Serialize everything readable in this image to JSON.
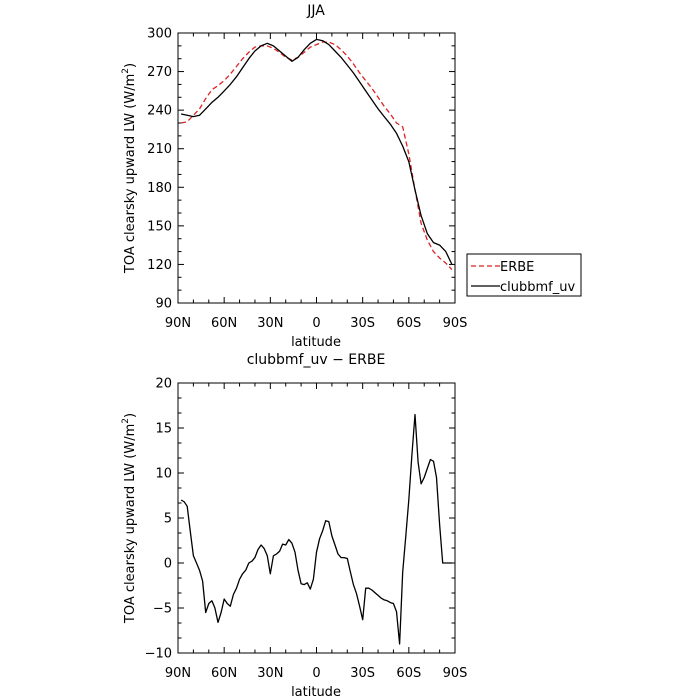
{
  "chart_data": [
    {
      "type": "line",
      "title": "JJA",
      "xlabel": "latitude",
      "ylabel": "TOA clearsky upward LW (W/m²)",
      "ylabel_main": "TOA clearsky upward LW (W/m",
      "ylabel_sup": "2",
      "ylabel_end": ")",
      "xlim": [
        90,
        -90
      ],
      "ylim": [
        90,
        300
      ],
      "x_ticks": [
        90,
        60,
        30,
        0,
        -30,
        -60,
        -90
      ],
      "x_tick_labels": [
        "90N",
        "60N",
        "30N",
        "0",
        "30S",
        "60S",
        "90S"
      ],
      "y_ticks": [
        90,
        120,
        150,
        180,
        210,
        240,
        270,
        300
      ],
      "y_tick_labels": [
        "90",
        "120",
        "150",
        "180",
        "210",
        "240",
        "270",
        "300"
      ],
      "legend": "right",
      "series": [
        {
          "name": "ERBE",
          "color": "#dd2222",
          "dash": true,
          "x": [
            88,
            84,
            80,
            76,
            72,
            68,
            64,
            60,
            56,
            52,
            48,
            44,
            40,
            36,
            32,
            28,
            24,
            20,
            16,
            12,
            8,
            4,
            0,
            -4,
            -8,
            -12,
            -16,
            -20,
            -24,
            -28,
            -32,
            -36,
            -40,
            -44,
            -48,
            -52,
            -56,
            -60,
            -64,
            -68,
            -72,
            -76,
            -80,
            -84,
            -88
          ],
          "y": [
            230,
            231,
            236,
            241,
            249,
            256,
            259,
            263,
            268,
            274,
            280,
            285,
            289,
            290,
            290,
            288,
            285,
            281,
            279,
            281,
            285,
            289,
            291,
            293,
            293,
            291,
            287,
            282,
            276,
            269,
            263,
            257,
            250,
            243,
            237,
            230,
            227,
            206,
            178,
            152,
            139,
            130,
            125,
            121,
            116
          ]
        },
        {
          "name": "clubbmf_uv",
          "color": "#000000",
          "dash": false,
          "x": [
            88,
            84,
            80,
            76,
            72,
            68,
            64,
            60,
            56,
            52,
            48,
            44,
            40,
            36,
            32,
            28,
            24,
            20,
            16,
            12,
            8,
            4,
            0,
            -4,
            -8,
            -12,
            -16,
            -20,
            -24,
            -28,
            -32,
            -36,
            -40,
            -44,
            -48,
            -52,
            -56,
            -60,
            -64,
            -68,
            -72,
            -76,
            -80,
            -84,
            -88
          ],
          "y": [
            237,
            236,
            235,
            236,
            241,
            246,
            250,
            255,
            260,
            266,
            273,
            280,
            286,
            290,
            292,
            290,
            286,
            282,
            278,
            281,
            287,
            292,
            295,
            294,
            291,
            286,
            281,
            275,
            269,
            262,
            255,
            248,
            241,
            235,
            229,
            222,
            212,
            200,
            178,
            158,
            144,
            137,
            135,
            130,
            120
          ]
        }
      ]
    },
    {
      "type": "line",
      "title": "clubbmf_uv − ERBE",
      "xlabel": "latitude",
      "ylabel": "TOA clearsky upward LW (W/m²)",
      "ylabel_main": "TOA clearsky upward LW (W/m",
      "ylabel_sup": "2",
      "ylabel_end": ")",
      "xlim": [
        90,
        -90
      ],
      "ylim": [
        -10,
        20
      ],
      "x_ticks": [
        90,
        60,
        30,
        0,
        -30,
        -60,
        -90
      ],
      "x_tick_labels": [
        "90N",
        "60N",
        "30N",
        "0",
        "30S",
        "60S",
        "90S"
      ],
      "y_ticks": [
        -10,
        -5,
        0,
        5,
        10,
        15,
        20
      ],
      "y_tick_labels": [
        "−10",
        "−5",
        "0",
        "5",
        "10",
        "15",
        "20"
      ],
      "series": [
        {
          "name": "",
          "color": "#000000",
          "dash": false,
          "x": [
            88,
            86,
            84,
            82,
            80,
            78,
            76,
            74,
            72,
            70,
            68,
            66,
            64,
            62,
            60,
            58,
            56,
            54,
            52,
            50,
            48,
            46,
            44,
            42,
            40,
            38,
            36,
            34,
            32,
            30,
            28,
            26,
            24,
            22,
            20,
            18,
            16,
            14,
            12,
            10,
            8,
            6,
            4,
            2,
            0,
            -2,
            -4,
            -6,
            -8,
            -10,
            -12,
            -14,
            -16,
            -18,
            -20,
            -22,
            -24,
            -26,
            -28,
            -30,
            -32,
            -34,
            -36,
            -38,
            -40,
            -42,
            -44,
            -46,
            -48,
            -50,
            -52,
            -54,
            -56,
            -58,
            -60,
            -62,
            -64,
            -66,
            -68,
            -70,
            -72,
            -74,
            -76,
            -78,
            -80,
            -82,
            -84,
            -86,
            -88
          ],
          "y": [
            7.0,
            6.8,
            6.3,
            3.5,
            0.8,
            0.0,
            -0.8,
            -2.0,
            -5.5,
            -4.5,
            -4.2,
            -5.0,
            -6.6,
            -5.5,
            -4.0,
            -4.5,
            -4.8,
            -3.5,
            -2.8,
            -1.8,
            -1.2,
            -0.8,
            0.0,
            0.2,
            0.6,
            1.5,
            2.0,
            1.6,
            0.8,
            -1.2,
            0.8,
            1.0,
            1.3,
            2.1,
            2.0,
            2.6,
            2.2,
            1.2,
            -0.8,
            -2.3,
            -2.4,
            -2.2,
            -2.9,
            -1.8,
            1.2,
            2.7,
            3.6,
            4.7,
            4.6,
            3.0,
            2.0,
            1.0,
            0.6,
            0.6,
            0.5,
            -1.0,
            -2.4,
            -3.4,
            -4.8,
            -6.3,
            -2.8,
            -2.8,
            -3.0,
            -3.3,
            -3.6,
            -3.9,
            -4.1,
            -4.2,
            -4.4,
            -4.5,
            -5.4,
            -9.0,
            -1.0,
            3.0,
            7.0,
            12.0,
            16.5,
            11.2,
            8.8,
            9.5,
            10.5,
            11.5,
            11.3,
            9.5,
            4.3,
            0,
            0,
            0,
            0
          ]
        }
      ]
    }
  ]
}
